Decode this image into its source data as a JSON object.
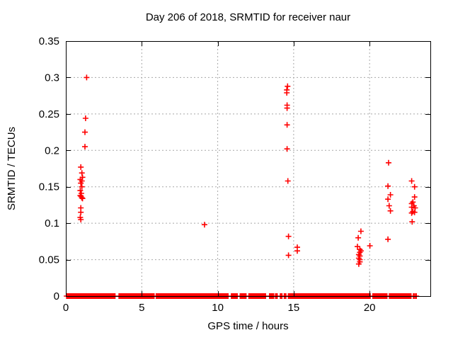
{
  "chart_data": {
    "type": "scatter",
    "title": "Day 206 of 2018, SRMTID for receiver naur",
    "xlabel": "GPS time / hours",
    "ylabel": "SRMTID / TECUs",
    "xlim": [
      0,
      24
    ],
    "ylim": [
      0,
      0.35
    ],
    "x_ticks": [
      0,
      5,
      10,
      15,
      20
    ],
    "x_tick_labels": [
      "0",
      "5",
      "10",
      "15",
      "20"
    ],
    "y_ticks": [
      0,
      0.05,
      0.1,
      0.15,
      0.2,
      0.25,
      0.3,
      0.35
    ],
    "y_tick_labels": [
      "0",
      "0.05",
      "0.1",
      "0.15",
      "0.2",
      "0.25",
      "0.3",
      "0.35"
    ],
    "grid": true,
    "legend": "none",
    "marker": "plus",
    "points": [
      [
        1.37,
        0.3
      ],
      [
        1.3,
        0.244
      ],
      [
        1.26,
        0.225
      ],
      [
        1.26,
        0.205
      ],
      [
        0.99,
        0.177
      ],
      [
        1.06,
        0.169
      ],
      [
        1.1,
        0.163
      ],
      [
        0.95,
        0.16
      ],
      [
        1.06,
        0.158
      ],
      [
        0.99,
        0.155
      ],
      [
        1.06,
        0.15
      ],
      [
        0.95,
        0.145
      ],
      [
        1.02,
        0.141
      ],
      [
        0.95,
        0.138
      ],
      [
        1.0,
        0.137
      ],
      [
        1.05,
        0.135
      ],
      [
        1.1,
        0.134
      ],
      [
        0.99,
        0.121
      ],
      [
        0.99,
        0.115
      ],
      [
        0.95,
        0.108
      ],
      [
        0.99,
        0.105
      ],
      [
        9.13,
        0.098
      ],
      [
        14.6,
        0.288
      ],
      [
        14.55,
        0.283
      ],
      [
        14.55,
        0.279
      ],
      [
        14.57,
        0.262
      ],
      [
        14.57,
        0.258
      ],
      [
        14.57,
        0.235
      ],
      [
        14.57,
        0.202
      ],
      [
        14.62,
        0.158
      ],
      [
        14.66,
        0.082
      ],
      [
        15.24,
        0.067
      ],
      [
        15.24,
        0.062
      ],
      [
        14.66,
        0.056
      ],
      [
        19.43,
        0.089
      ],
      [
        19.25,
        0.08
      ],
      [
        20.02,
        0.069
      ],
      [
        19.2,
        0.068
      ],
      [
        19.36,
        0.064
      ],
      [
        19.43,
        0.062
      ],
      [
        19.36,
        0.06
      ],
      [
        19.29,
        0.057
      ],
      [
        19.36,
        0.055
      ],
      [
        19.29,
        0.052
      ],
      [
        19.36,
        0.05
      ],
      [
        19.36,
        0.047
      ],
      [
        19.29,
        0.044
      ],
      [
        21.25,
        0.183
      ],
      [
        21.21,
        0.151
      ],
      [
        21.37,
        0.139
      ],
      [
        21.21,
        0.133
      ],
      [
        21.29,
        0.124
      ],
      [
        21.37,
        0.117
      ],
      [
        21.21,
        0.078
      ],
      [
        22.77,
        0.158
      ],
      [
        22.96,
        0.15
      ],
      [
        22.96,
        0.136
      ],
      [
        22.85,
        0.129
      ],
      [
        22.77,
        0.127
      ],
      [
        22.92,
        0.124
      ],
      [
        22.77,
        0.122
      ],
      [
        23.0,
        0.121
      ],
      [
        22.85,
        0.116
      ],
      [
        22.96,
        0.115
      ],
      [
        22.77,
        0.114
      ],
      [
        22.8,
        0.102
      ]
    ],
    "zero_band_segments": [
      [
        0.05,
        3.27
      ],
      [
        3.5,
        5.83
      ],
      [
        5.95,
        10.7
      ],
      [
        10.9,
        11.32
      ],
      [
        11.48,
        11.9
      ],
      [
        12.05,
        13.19
      ],
      [
        13.41,
        13.72
      ],
      [
        13.81,
        13.96
      ],
      [
        14.12,
        14.27
      ],
      [
        14.38,
        14.54
      ],
      [
        14.65,
        20.05
      ],
      [
        20.21,
        21.19
      ],
      [
        21.3,
        22.77
      ],
      [
        22.88,
        22.97
      ],
      [
        23.02,
        23.11
      ]
    ]
  },
  "colors": {
    "marker": "#ff0000",
    "grid": "#a8a8a8",
    "axis": "#000000",
    "background": "#ffffff"
  }
}
